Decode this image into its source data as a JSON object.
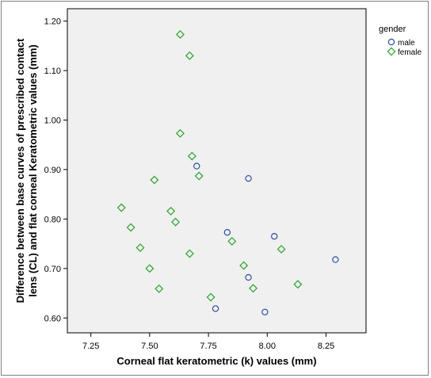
{
  "chart_data": {
    "type": "scatter",
    "title": "",
    "xlabel": "Corneal flat keratometric (k) values (mm)",
    "ylabel_lines": [
      "Difference between base curves of prescribed contact",
      "lens (CL) and flat corneal Keratometric values (mm)"
    ],
    "xlim": [
      7.15,
      8.42
    ],
    "ylim": [
      0.57,
      1.225
    ],
    "x_ticks": [
      "7.25",
      "7.50",
      "7.75",
      "8.00",
      "8.25"
    ],
    "y_ticks": [
      "0.60",
      "0.70",
      "0.80",
      "0.90",
      "1.00",
      "1.10",
      "1.20"
    ],
    "grid": false,
    "plot_background": "#f0f0f0",
    "legend": {
      "title": "gender",
      "placement": "outside-top-right",
      "entries": [
        {
          "label": "male",
          "marker": "circle",
          "color": "#2e4f9e"
        },
        {
          "label": "female",
          "marker": "diamond",
          "color": "#2ca02c"
        }
      ]
    },
    "series": [
      {
        "name": "male",
        "marker": "circle",
        "color": "#2e4f9e",
        "points": [
          {
            "x": 7.7,
            "y": 0.907
          },
          {
            "x": 7.92,
            "y": 0.882
          },
          {
            "x": 7.83,
            "y": 0.773
          },
          {
            "x": 8.03,
            "y": 0.765
          },
          {
            "x": 8.29,
            "y": 0.718
          },
          {
            "x": 7.92,
            "y": 0.682
          },
          {
            "x": 7.78,
            "y": 0.619
          },
          {
            "x": 7.99,
            "y": 0.612
          }
        ]
      },
      {
        "name": "female",
        "marker": "diamond",
        "color": "#2ca02c",
        "points": [
          {
            "x": 7.63,
            "y": 1.173
          },
          {
            "x": 7.67,
            "y": 1.13
          },
          {
            "x": 7.63,
            "y": 0.973
          },
          {
            "x": 7.68,
            "y": 0.927
          },
          {
            "x": 7.71,
            "y": 0.887
          },
          {
            "x": 7.52,
            "y": 0.879
          },
          {
            "x": 7.38,
            "y": 0.823
          },
          {
            "x": 7.59,
            "y": 0.816
          },
          {
            "x": 7.61,
            "y": 0.794
          },
          {
            "x": 7.42,
            "y": 0.783
          },
          {
            "x": 7.85,
            "y": 0.755
          },
          {
            "x": 7.46,
            "y": 0.742
          },
          {
            "x": 8.06,
            "y": 0.739
          },
          {
            "x": 7.67,
            "y": 0.73
          },
          {
            "x": 7.9,
            "y": 0.706
          },
          {
            "x": 7.5,
            "y": 0.7
          },
          {
            "x": 8.13,
            "y": 0.668
          },
          {
            "x": 7.94,
            "y": 0.66
          },
          {
            "x": 7.54,
            "y": 0.659
          },
          {
            "x": 7.76,
            "y": 0.642
          }
        ]
      }
    ]
  }
}
